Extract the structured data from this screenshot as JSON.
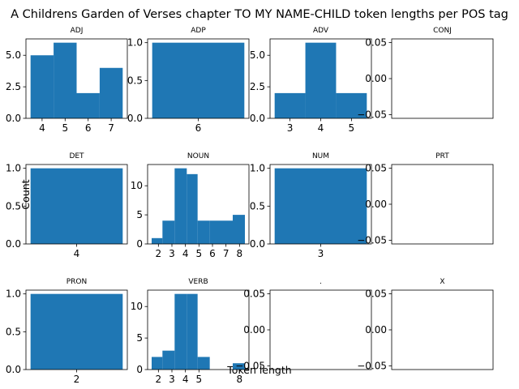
{
  "figure": {
    "suptitle": "A Childrens Garden of Verses chapter TO MY NAME-CHILD token lengths per POS tag",
    "supxlabel": "Token length",
    "supylabel": "Count",
    "bar_color": "#1f77b4"
  },
  "chart_data": [
    {
      "type": "bar",
      "title": "ADJ",
      "bins": [
        [
          3.5,
          4.5,
          5
        ],
        [
          4.5,
          5.5,
          6
        ],
        [
          5.5,
          6.5,
          2
        ],
        [
          6.5,
          7.5,
          4
        ]
      ],
      "xlim": [
        3.3,
        7.7
      ],
      "ylim": [
        0,
        6.3
      ],
      "xticks": [
        4,
        5,
        6,
        7
      ],
      "xtick_labels": [
        "4",
        "5",
        "6",
        "7"
      ],
      "yticks": [
        0,
        2.5,
        5
      ],
      "ytick_labels": [
        "0.0",
        "2.5",
        "5.0"
      ]
    },
    {
      "type": "bar",
      "title": "ADP",
      "bins": [
        [
          5.5,
          6.5,
          1
        ]
      ],
      "xlim": [
        5.45,
        6.55
      ],
      "ylim": [
        0,
        1.05
      ],
      "xticks": [
        6
      ],
      "xtick_labels": [
        "6"
      ],
      "yticks": [
        0,
        0.5,
        1
      ],
      "ytick_labels": [
        "0.0",
        "0.5",
        "1.0"
      ]
    },
    {
      "type": "bar",
      "title": "ADV",
      "bins": [
        [
          2.5,
          3.5,
          2
        ],
        [
          3.5,
          4.5,
          6
        ],
        [
          4.5,
          5.5,
          2
        ]
      ],
      "xlim": [
        2.35,
        5.65
      ],
      "ylim": [
        0,
        6.3
      ],
      "xticks": [
        3,
        4,
        5
      ],
      "xtick_labels": [
        "3",
        "4",
        "5"
      ],
      "yticks": [
        0,
        2.5,
        5
      ],
      "ytick_labels": [
        "0.0",
        "2.5",
        "5.0"
      ]
    },
    {
      "type": "bar",
      "title": "CONJ",
      "bins": [],
      "xlim": [
        0,
        1
      ],
      "ylim": [
        -0.055,
        0.055
      ],
      "xticks": [],
      "xtick_labels": [],
      "yticks": [
        -0.05,
        0,
        0.05
      ],
      "ytick_labels": [
        "−0.05",
        "0.00",
        "0.05"
      ]
    },
    {
      "type": "bar",
      "title": "DET",
      "bins": [
        [
          3.5,
          4.5,
          1
        ]
      ],
      "xlim": [
        3.45,
        4.55
      ],
      "ylim": [
        0,
        1.05
      ],
      "xticks": [
        4
      ],
      "xtick_labels": [
        "4"
      ],
      "yticks": [
        0,
        0.5,
        1
      ],
      "ytick_labels": [
        "0.0",
        "0.5",
        "1.0"
      ]
    },
    {
      "type": "bar",
      "title": "NOUN",
      "bins": [
        [
          1.5,
          2.3,
          1
        ],
        [
          2.3,
          3.2,
          4
        ],
        [
          3.2,
          4.1,
          13
        ],
        [
          4.1,
          4.9,
          12
        ],
        [
          4.9,
          5.8,
          4
        ],
        [
          5.8,
          6.6,
          4
        ],
        [
          6.6,
          7.5,
          4
        ],
        [
          7.5,
          8.4,
          5
        ]
      ],
      "xlim": [
        1.2,
        8.7
      ],
      "ylim": [
        0,
        13.65
      ],
      "xticks": [
        2,
        3,
        4,
        5,
        6,
        7,
        8
      ],
      "xtick_labels": [
        "2",
        "3",
        "4",
        "5",
        "6",
        "7",
        "8"
      ],
      "yticks": [
        0,
        5,
        10
      ],
      "ytick_labels": [
        "0",
        "5",
        "10"
      ]
    },
    {
      "type": "bar",
      "title": "NUM",
      "bins": [
        [
          2.5,
          3.5,
          1
        ]
      ],
      "xlim": [
        2.45,
        3.55
      ],
      "ylim": [
        0,
        1.05
      ],
      "xticks": [
        3
      ],
      "xtick_labels": [
        "3"
      ],
      "yticks": [
        0,
        0.5,
        1
      ],
      "ytick_labels": [
        "0.0",
        "0.5",
        "1.0"
      ]
    },
    {
      "type": "bar",
      "title": "PRT",
      "bins": [],
      "xlim": [
        0,
        1
      ],
      "ylim": [
        -0.055,
        0.055
      ],
      "xticks": [],
      "xtick_labels": [],
      "yticks": [
        -0.05,
        0,
        0.05
      ],
      "ytick_labels": [
        "−0.05",
        "0.00",
        "0.05"
      ]
    },
    {
      "type": "bar",
      "title": "PRON",
      "bins": [
        [
          1.5,
          2.5,
          1
        ]
      ],
      "xlim": [
        1.45,
        2.55
      ],
      "ylim": [
        0,
        1.05
      ],
      "xticks": [
        2
      ],
      "xtick_labels": [
        "2"
      ],
      "yticks": [
        0,
        0.5,
        1
      ],
      "ytick_labels": [
        "0.0",
        "0.5",
        "1.0"
      ]
    },
    {
      "type": "bar",
      "title": "VERB",
      "bins": [
        [
          1.5,
          2.3,
          2
        ],
        [
          2.3,
          3.2,
          3
        ],
        [
          3.2,
          4.1,
          12
        ],
        [
          4.1,
          4.9,
          12
        ],
        [
          4.9,
          5.8,
          2
        ],
        [
          5.8,
          6.6,
          0
        ],
        [
          6.6,
          7.5,
          0
        ],
        [
          7.5,
          8.4,
          1
        ]
      ],
      "xlim": [
        1.2,
        8.7
      ],
      "ylim": [
        0,
        12.6
      ],
      "xticks": [
        2,
        3,
        4,
        5,
        8
      ],
      "xtick_labels": [
        "2",
        "3",
        "4",
        "5",
        "8"
      ],
      "yticks": [
        0,
        5,
        10
      ],
      "ytick_labels": [
        "0",
        "5",
        "10"
      ]
    },
    {
      "type": "bar",
      "title": ".",
      "bins": [],
      "xlim": [
        0,
        1
      ],
      "ylim": [
        -0.055,
        0.055
      ],
      "xticks": [],
      "xtick_labels": [],
      "yticks": [
        -0.05,
        0,
        0.05
      ],
      "ytick_labels": [
        "−0.05",
        "0.00",
        "0.05"
      ]
    },
    {
      "type": "bar",
      "title": "X",
      "bins": [],
      "xlim": [
        0,
        1
      ],
      "ylim": [
        -0.055,
        0.055
      ],
      "xticks": [],
      "xtick_labels": [],
      "yticks": [
        -0.05,
        0,
        0.05
      ],
      "ytick_labels": [
        "−0.05",
        "0.00",
        "0.05"
      ]
    }
  ]
}
